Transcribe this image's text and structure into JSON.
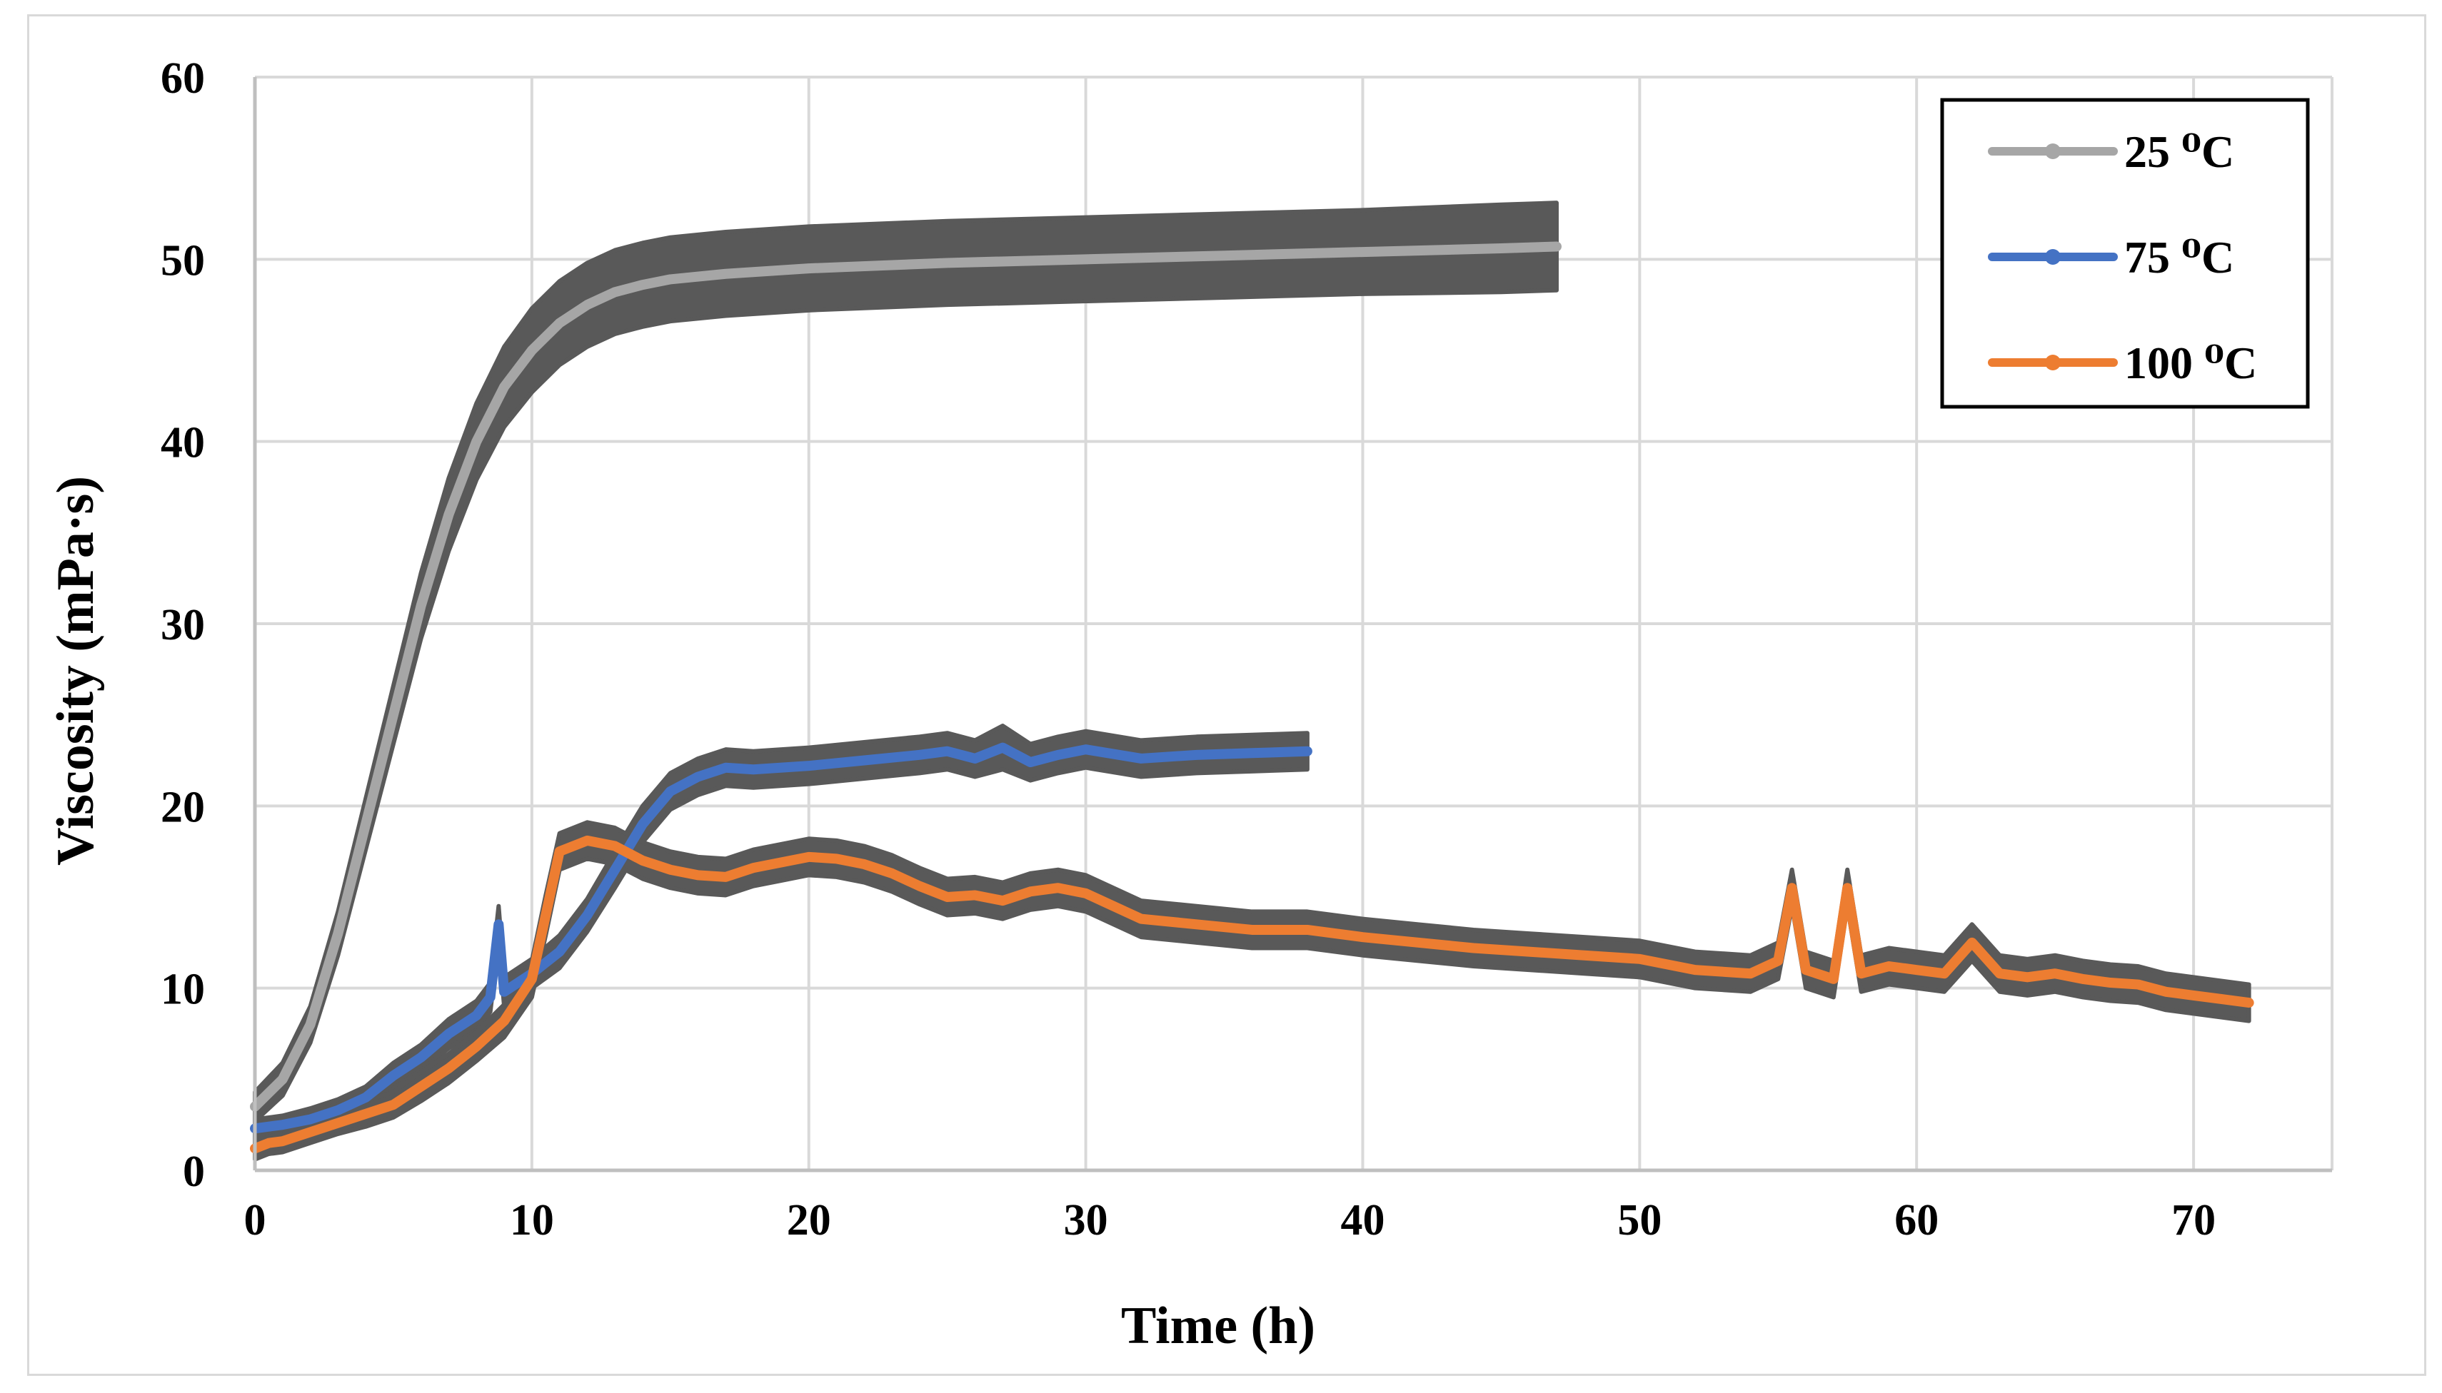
{
  "chart_data": {
    "type": "line",
    "title": "",
    "xlabel": "Time (h)",
    "ylabel": "Viscosity (mPa·s)",
    "xlim": [
      0,
      75
    ],
    "ylim": [
      0,
      60
    ],
    "xticks": [
      0,
      10,
      20,
      30,
      40,
      50,
      60,
      70
    ],
    "yticks": [
      0,
      10,
      20,
      30,
      40,
      50,
      60
    ],
    "grid": true,
    "legend_position": "top-right",
    "series": [
      {
        "name": "25 ⁰C",
        "color": "#a6a6a6",
        "error_color": "#595959",
        "x": [
          0,
          1,
          2,
          3,
          4,
          5,
          6,
          7,
          8,
          9,
          10,
          11,
          12,
          13,
          14,
          15,
          17,
          20,
          25,
          30,
          35,
          40,
          45,
          47
        ],
        "y": [
          3.5,
          5,
          8,
          13,
          19,
          25,
          31,
          36,
          40,
          43,
          45,
          46.5,
          47.5,
          48.2,
          48.6,
          48.9,
          49.2,
          49.5,
          49.8,
          50,
          50.2,
          50.4,
          50.6,
          50.7
        ],
        "error": [
          0.8,
          0.9,
          1,
          1.2,
          1.4,
          1.6,
          1.8,
          2,
          2.1,
          2.2,
          2.3,
          2.3,
          2.3,
          2.3,
          2.3,
          2.3,
          2.3,
          2.3,
          2.3,
          2.3,
          2.3,
          2.3,
          2.4,
          2.4
        ]
      },
      {
        "name": "75 ⁰C",
        "color": "#4472c4",
        "error_color": "#595959",
        "x": [
          0,
          1,
          2,
          3,
          4,
          5,
          6,
          7,
          8,
          8.5,
          8.8,
          9,
          10,
          11,
          12,
          13,
          14,
          15,
          16,
          17,
          18,
          20,
          22,
          24,
          25,
          26,
          27,
          28,
          29,
          30,
          32,
          34,
          36,
          38
        ],
        "y": [
          2.3,
          2.5,
          2.8,
          3.3,
          4,
          5.2,
          6.2,
          7.5,
          8.5,
          9.5,
          13.5,
          9.8,
          10.8,
          12,
          14,
          16.5,
          19,
          20.8,
          21.6,
          22.1,
          22,
          22.2,
          22.5,
          22.8,
          23,
          22.6,
          23.2,
          22.4,
          22.8,
          23.1,
          22.6,
          22.8,
          22.9,
          23
        ],
        "error": [
          0.5,
          0.5,
          0.6,
          0.6,
          0.6,
          0.7,
          0.7,
          0.8,
          0.8,
          0.8,
          1,
          0.8,
          0.8,
          0.9,
          0.9,
          1,
          1,
          1,
          1,
          1,
          1,
          1,
          1,
          1,
          1,
          1,
          1.2,
          1,
          1,
          1,
          1,
          1,
          1,
          1
        ]
      },
      {
        "name": "100 ⁰C",
        "color": "#ed7d31",
        "error_color": "#595959",
        "x": [
          0,
          0.5,
          1,
          2,
          3,
          4,
          5,
          6,
          7,
          8,
          9,
          10,
          10.5,
          11,
          12,
          13,
          14,
          15,
          16,
          17,
          18,
          19,
          20,
          21,
          22,
          23,
          24,
          25,
          26,
          27,
          28,
          29,
          30,
          31,
          32,
          34,
          36,
          38,
          40,
          42,
          44,
          46,
          48,
          50,
          52,
          54,
          55,
          55.5,
          56,
          57,
          57.5,
          58,
          58.5,
          59,
          60,
          61,
          62,
          63,
          64,
          65,
          66,
          67,
          68,
          69,
          70,
          71,
          72
        ],
        "y": [
          1.2,
          1.5,
          1.6,
          2.1,
          2.6,
          3.1,
          3.6,
          4.6,
          5.6,
          6.8,
          8.2,
          10.5,
          14,
          17.5,
          18.1,
          17.8,
          17,
          16.5,
          16.2,
          16.1,
          16.6,
          16.9,
          17.2,
          17.1,
          16.8,
          16.3,
          15.6,
          15,
          15.1,
          14.8,
          15.3,
          15.5,
          15.2,
          14.5,
          13.8,
          13.5,
          13.2,
          13.2,
          12.8,
          12.5,
          12.2,
          12,
          11.8,
          11.6,
          11,
          10.8,
          11.5,
          15.5,
          11,
          10.5,
          15.5,
          10.8,
          11,
          11.2,
          11,
          10.8,
          12.5,
          10.8,
          10.6,
          10.8,
          10.5,
          10.3,
          10.2,
          9.8,
          9.6,
          9.4,
          9.2
        ],
        "error": [
          0.6,
          0.6,
          0.6,
          0.6,
          0.6,
          0.7,
          0.7,
          0.8,
          0.8,
          0.8,
          0.9,
          1,
          1.1,
          1,
          1,
          1,
          1,
          1,
          1,
          1,
          1,
          1,
          1,
          1,
          1,
          1,
          1,
          1,
          1,
          1,
          1,
          1,
          1,
          1,
          1,
          1,
          1,
          1,
          1,
          1,
          1,
          1,
          1,
          1,
          1,
          1,
          1,
          1,
          1,
          1,
          1,
          1,
          1,
          1,
          1,
          1,
          1,
          1,
          1,
          1,
          1,
          1,
          1,
          1,
          1,
          1,
          1
        ]
      }
    ]
  }
}
